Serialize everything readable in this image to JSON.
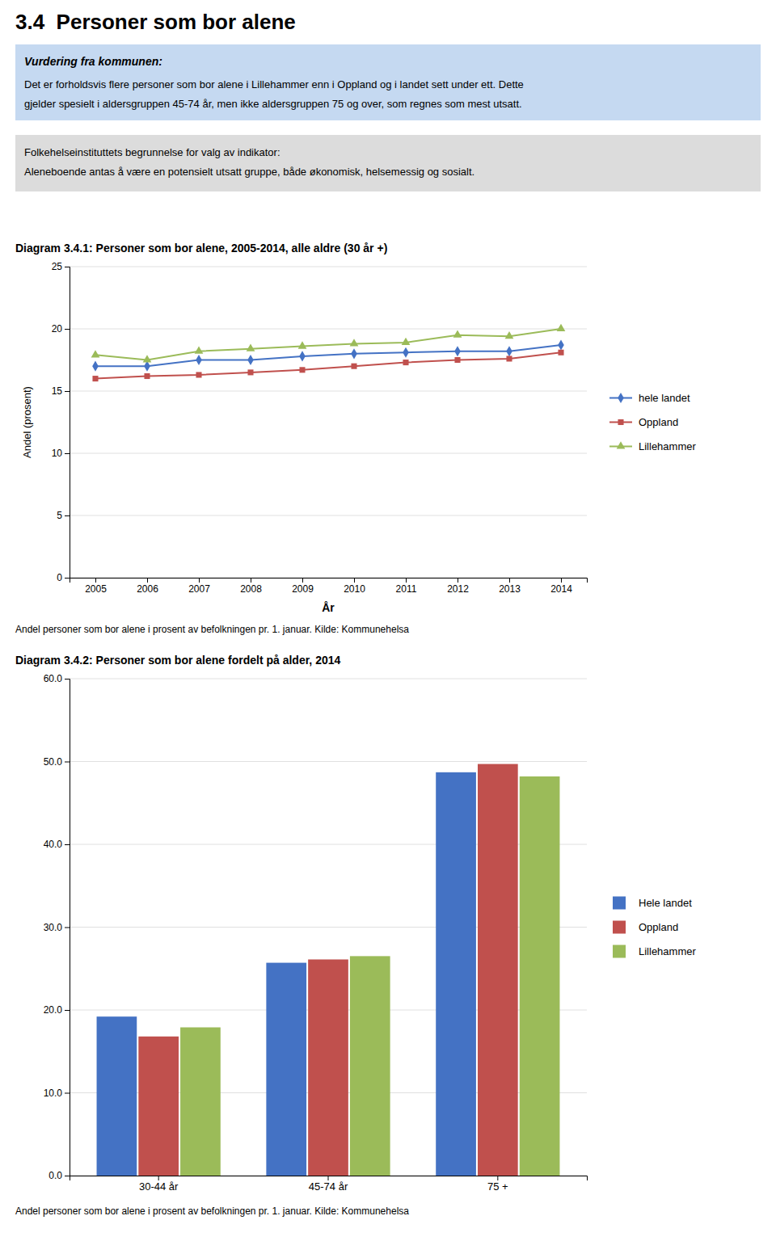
{
  "title": "3.4  Personer som bor alene",
  "background_color": "#FFFFFF",
  "boxes": [
    {
      "title": "Vurdering fra kommunen:",
      "lines": [
        "Det er forholdsvis flere personer som bor alene i Lillehammer enn i Oppland og i landet sett under ett. Dette",
        "gjelder spesielt i aldersgruppen 45-74 år, men ikke aldersgruppen 75 og over, som regnes som mest utsatt."
      ],
      "color": "#C5D9F1"
    },
    {
      "lines": [
        "Folkehelseinstituttets begrunnelse for valg av indikator:",
        "Aleneboende antas å være en potensielt utsatt gruppe, både økonomisk, helsemessig og sosialt."
      ],
      "color": "#DCDCDC"
    }
  ],
  "chart_data": [
    {
      "type": "line",
      "title": "Diagram 3.4.1: Personer som bor alene, 2005-2014, alle aldre (30 år +)",
      "xlabel": "År",
      "ylabel": "Andel (prosent)",
      "x": [
        2005,
        2006,
        2007,
        2008,
        2009,
        2010,
        2011,
        2012,
        2013,
        2014
      ],
      "series": [
        {
          "name": "hele landet",
          "color": "#4472C4",
          "marker": "diamond",
          "values": [
            17.0,
            17.0,
            17.5,
            17.5,
            17.8,
            18.0,
            18.1,
            18.2,
            18.2,
            18.7
          ]
        },
        {
          "name": "Oppland",
          "color": "#C0504D",
          "marker": "square",
          "values": [
            16.0,
            16.2,
            16.3,
            16.5,
            16.7,
            17.0,
            17.3,
            17.5,
            17.6,
            18.1
          ]
        },
        {
          "name": "Lillehammer",
          "color": "#9BBB59",
          "marker": "triangle",
          "values": [
            17.9,
            17.5,
            18.2,
            18.4,
            18.6,
            18.8,
            18.9,
            19.5,
            19.4,
            20.0
          ]
        }
      ],
      "xlim": [
        2004.5,
        2014.5
      ],
      "xticks": [
        2005,
        2006,
        2007,
        2008,
        2009,
        2010,
        2011,
        2012,
        2013,
        2014
      ],
      "ylim": [
        0,
        25
      ],
      "yticks": [
        0,
        5,
        10,
        15,
        20,
        25
      ],
      "grid": true,
      "legend": "right",
      "annotations": [
        "Andel personer som bor alene i prosent av befolkningen pr. 1. januar. Kilde: Kommunehelsa"
      ]
    },
    {
      "type": "bar",
      "title": "Diagram 3.4.2: Personer som bor alene fordelt på alder, 2014",
      "categories": [
        "30-44 år",
        "45-74 år",
        "75 +"
      ],
      "series": [
        {
          "name": "Hele landet",
          "color": "#4472C4",
          "values": [
            19.2,
            25.7,
            48.7
          ]
        },
        {
          "name": "Oppland",
          "color": "#C0504D",
          "values": [
            16.8,
            26.1,
            49.7
          ]
        },
        {
          "name": "Lillehammer",
          "color": "#9BBB59",
          "values": [
            17.9,
            26.5,
            48.2
          ]
        }
      ],
      "ylim": [
        0,
        60
      ],
      "yticks": [
        {
          "value": 0,
          "label": "0.0"
        },
        {
          "value": 10,
          "label": "10.0"
        },
        {
          "value": 20,
          "label": "20.0"
        },
        {
          "value": 30,
          "label": "30.0"
        },
        {
          "value": 40,
          "label": "40.0"
        },
        {
          "value": 50,
          "label": "50.0"
        },
        {
          "value": 60,
          "label": "60.0"
        }
      ],
      "grid": true,
      "legend": "right",
      "annotations": [
        "Andel personer som bor alene i prosent av befolkningen pr. 1. januar. Kilde: Kommunehelsa"
      ]
    }
  ]
}
